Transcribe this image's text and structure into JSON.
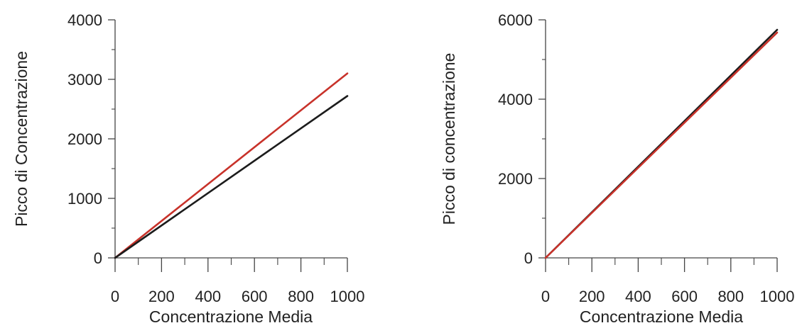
{
  "chart_data": [
    {
      "type": "line",
      "title": "",
      "xlabel": "Concentrazione Media",
      "ylabel": "Picco di Concentrazione",
      "xlim": [
        0,
        1000
      ],
      "ylim": [
        0,
        4000
      ],
      "xticks_major": [
        0,
        200,
        400,
        600,
        800,
        1000
      ],
      "xticks_minor": [
        100,
        300,
        500,
        700,
        900
      ],
      "yticks_major": [
        0,
        1000,
        2000,
        3000,
        4000
      ],
      "yticks_minor": [
        500,
        1500,
        2500,
        3500
      ],
      "grid": false,
      "series": [
        {
          "color": "#c8322a",
          "x": [
            0,
            1000
          ],
          "y": [
            0,
            3100
          ]
        },
        {
          "color": "#1c1c1c",
          "x": [
            0,
            1000
          ],
          "y": [
            0,
            2720
          ]
        }
      ]
    },
    {
      "type": "line",
      "title": "",
      "xlabel": "Concentrazione Media",
      "ylabel": "Picco di concentrazione",
      "xlim": [
        0,
        1000
      ],
      "ylim": [
        0,
        6000
      ],
      "xticks_major": [
        0,
        200,
        400,
        600,
        800,
        1000
      ],
      "xticks_minor": [
        100,
        300,
        500,
        700,
        900
      ],
      "yticks_major": [
        0,
        2000,
        4000,
        6000
      ],
      "yticks_minor": [
        1000,
        3000,
        5000
      ],
      "grid": false,
      "series": [
        {
          "color": "#1c1c1c",
          "x": [
            0,
            1000
          ],
          "y": [
            0,
            5750
          ]
        },
        {
          "color": "#c8322a",
          "x": [
            0,
            1000
          ],
          "y": [
            0,
            5680
          ]
        }
      ]
    }
  ]
}
